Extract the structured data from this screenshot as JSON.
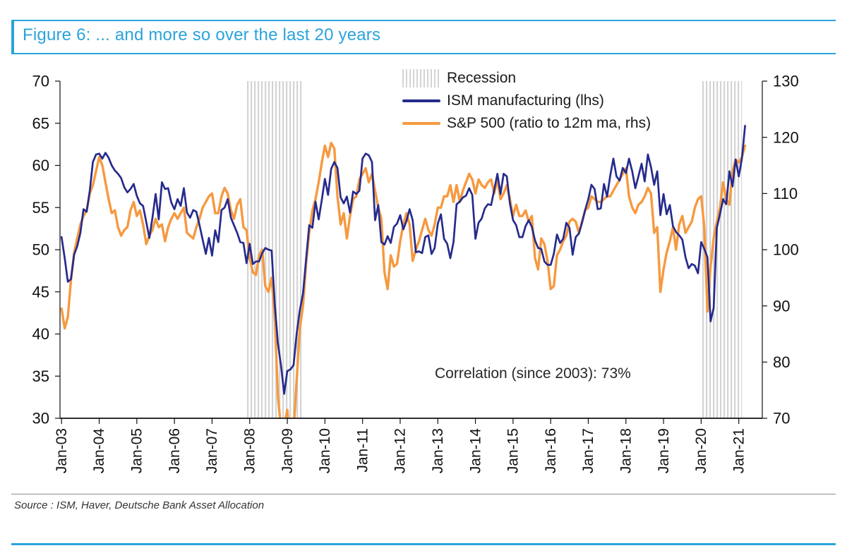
{
  "figure": {
    "title": "Figure 6: ... and more so over the last 20 years",
    "source": "Source : ISM, Haver, Deutsche Bank Asset Allocation"
  },
  "colors": {
    "accent_cyan": "#2ba3db",
    "ism_navy": "#262b8d",
    "spx_orange": "#f6993f",
    "recession_gray": "#d4d4d4",
    "axis_black": "#111111"
  },
  "chart_data": {
    "type": "line",
    "title": "Figure 6: ... and more so over the last 20 years",
    "x_start": "2003-01",
    "x_frequency": "monthly",
    "x_tick_labels": [
      "Jan-03",
      "Jan-04",
      "Jan-05",
      "Jan-06",
      "Jan-07",
      "Jan-08",
      "Jan-09",
      "Jan-10",
      "Jan-11",
      "Jan-12",
      "Jan-13",
      "Jan-14",
      "Jan-15",
      "Jan-16",
      "Jan-17",
      "Jan-18",
      "Jan-19",
      "Jan-20",
      "Jan-21"
    ],
    "left_axis": {
      "min": 30,
      "max": 70,
      "ticks": [
        70,
        65,
        60,
        55,
        50,
        45,
        40,
        35,
        30
      ]
    },
    "right_axis": {
      "min": 70,
      "max": 130,
      "ticks": [
        130,
        120,
        110,
        100,
        90,
        80,
        70
      ]
    },
    "annotation": "Correlation (since 2003): 73%",
    "legend": [
      {
        "label": "Recession",
        "type": "band"
      },
      {
        "label": "ISM manufacturing (lhs)",
        "type": "line",
        "axis": "left"
      },
      {
        "label": "S&P 500 (ratio to 12m ma, rhs)",
        "type": "line",
        "axis": "right"
      }
    ],
    "recession_bands": [
      {
        "from": "2007-12",
        "to": "2009-06"
      },
      {
        "from": "2020-01",
        "to": "2021-02"
      }
    ],
    "series": [
      {
        "name": "ISM manufacturing (lhs)",
        "axis": "left",
        "values": [
          51.5,
          49.0,
          46.2,
          46.5,
          49.4,
          50.4,
          52.0,
          54.8,
          54.5,
          57.0,
          60.4,
          61.3,
          61.4,
          60.8,
          61.5,
          60.9,
          60.0,
          59.4,
          59.0,
          58.5,
          57.4,
          56.8,
          57.2,
          57.8,
          56.4,
          55.5,
          55.2,
          53.3,
          51.4,
          53.8,
          56.6,
          53.6,
          58.0,
          57.2,
          57.3,
          55.6,
          54.8,
          56.0,
          55.2,
          57.3,
          54.4,
          53.8,
          54.7,
          54.5,
          52.9,
          51.2,
          49.5,
          51.4,
          49.3,
          52.3,
          50.9,
          54.7,
          55.0,
          56.0,
          53.8,
          52.9,
          52.0,
          50.9,
          50.8,
          48.4,
          50.7,
          48.3,
          48.6,
          48.6,
          49.6,
          50.2,
          50.0,
          49.9,
          43.5,
          38.9,
          36.2,
          32.9,
          35.6,
          35.8,
          36.3,
          40.1,
          42.8,
          44.8,
          48.9,
          52.9,
          52.6,
          55.7,
          53.6,
          55.9,
          58.4,
          56.5,
          59.6,
          60.4,
          59.7,
          56.2,
          55.5,
          56.3,
          54.4,
          56.9,
          56.6,
          57.0,
          60.8,
          61.4,
          61.2,
          60.4,
          53.5,
          55.3,
          50.9,
          50.6,
          51.6,
          50.8,
          52.7,
          53.1,
          54.1,
          52.4,
          53.4,
          54.8,
          53.5,
          49.7,
          49.8,
          49.6,
          51.5,
          51.7,
          49.5,
          50.2,
          53.1,
          54.2,
          51.3,
          50.7,
          49.0,
          50.9,
          55.4,
          55.7,
          56.2,
          56.4,
          57.3,
          56.5,
          51.3,
          53.2,
          53.7,
          54.9,
          55.4,
          55.3,
          57.1,
          59.0,
          56.6,
          59.0,
          58.7,
          55.5,
          53.5,
          52.9,
          51.5,
          51.5,
          52.8,
          53.5,
          52.7,
          51.1,
          50.2,
          50.1,
          48.6,
          48.2,
          48.2,
          49.5,
          51.8,
          50.8,
          51.3,
          53.2,
          52.6,
          49.4,
          51.5,
          51.9,
          53.2,
          54.7,
          56.0,
          57.7,
          57.2,
          54.8,
          54.9,
          57.8,
          56.3,
          58.8,
          60.8,
          58.7,
          58.2,
          59.7,
          59.1,
          60.8,
          59.3,
          57.3,
          58.7,
          60.2,
          58.1,
          61.3,
          59.8,
          57.7,
          59.3,
          54.1,
          56.6,
          54.2,
          55.3,
          52.8,
          52.1,
          51.7,
          51.2,
          49.1,
          47.8,
          48.3,
          48.1,
          47.2,
          50.9,
          50.1,
          49.1,
          41.5,
          43.1,
          52.6,
          54.2,
          56.0,
          55.4,
          59.3,
          57.5,
          60.7,
          58.7,
          60.8,
          64.7
        ]
      },
      {
        "name": "S&P 500 (ratio to 12m ma, rhs)",
        "axis": "right",
        "values": [
          89.5,
          86.0,
          88.0,
          94.5,
          99.5,
          102.0,
          104.5,
          106.0,
          107.0,
          110.0,
          111.5,
          114.0,
          116.5,
          115.0,
          112.0,
          109.0,
          106.5,
          107.0,
          104.0,
          102.5,
          103.5,
          104.0,
          107.0,
          108.5,
          106.0,
          107.0,
          104.5,
          101.0,
          102.5,
          103.5,
          105.5,
          104.0,
          104.5,
          101.5,
          104.0,
          105.5,
          106.5,
          105.5,
          106.5,
          107.5,
          103.0,
          102.5,
          102.0,
          104.0,
          105.5,
          107.5,
          108.5,
          109.5,
          110.0,
          106.5,
          106.5,
          109.5,
          111.0,
          110.0,
          107.0,
          105.5,
          108.0,
          109.0,
          104.0,
          103.5,
          98.5,
          96.0,
          95.5,
          99.0,
          100.0,
          93.5,
          92.5,
          95.0,
          88.0,
          74.0,
          68.0,
          68.5,
          71.5,
          65.0,
          67.5,
          77.0,
          86.0,
          90.0,
          97.5,
          103.0,
          107.0,
          109.0,
          112.0,
          115.5,
          118.5,
          116.5,
          119.0,
          118.0,
          109.5,
          104.5,
          106.5,
          102.0,
          106.0,
          109.0,
          109.5,
          112.5,
          113.5,
          114.5,
          112.0,
          113.5,
          110.5,
          107.5,
          105.5,
          96.0,
          93.0,
          99.0,
          97.0,
          97.5,
          101.5,
          104.5,
          106.5,
          104.5,
          98.0,
          100.0,
          101.5,
          103.5,
          105.5,
          103.5,
          102.5,
          104.5,
          107.5,
          107.5,
          109.5,
          109.5,
          111.5,
          108.5,
          111.5,
          108.5,
          110.5,
          112.0,
          113.5,
          112.5,
          110.0,
          112.5,
          111.5,
          111.0,
          112.0,
          112.5,
          110.0,
          112.5,
          109.0,
          110.0,
          111.5,
          109.0,
          106.0,
          108.0,
          106.0,
          106.0,
          107.0,
          105.0,
          106.0,
          98.5,
          96.5,
          102.0,
          101.0,
          98.0,
          93.0,
          93.5,
          99.0,
          100.0,
          101.5,
          102.5,
          105.0,
          105.5,
          105.0,
          103.0,
          105.0,
          107.0,
          107.5,
          109.5,
          109.0,
          108.5,
          108.5,
          109.0,
          109.5,
          109.5,
          110.5,
          111.5,
          112.5,
          113.5,
          114.5,
          109.5,
          107.5,
          106.5,
          108.0,
          108.5,
          109.5,
          111.0,
          110.0,
          103.0,
          104.0,
          92.5,
          96.5,
          99.5,
          101.5,
          104.0,
          100.0,
          104.5,
          106.0,
          103.0,
          104.0,
          105.0,
          107.5,
          109.0,
          109.5,
          104.0,
          89.0,
          97.0,
          102.0,
          105.0,
          107.5,
          112.0,
          109.0,
          108.0,
          114.0,
          116.0,
          115.5,
          116.5,
          118.5
        ]
      }
    ]
  }
}
